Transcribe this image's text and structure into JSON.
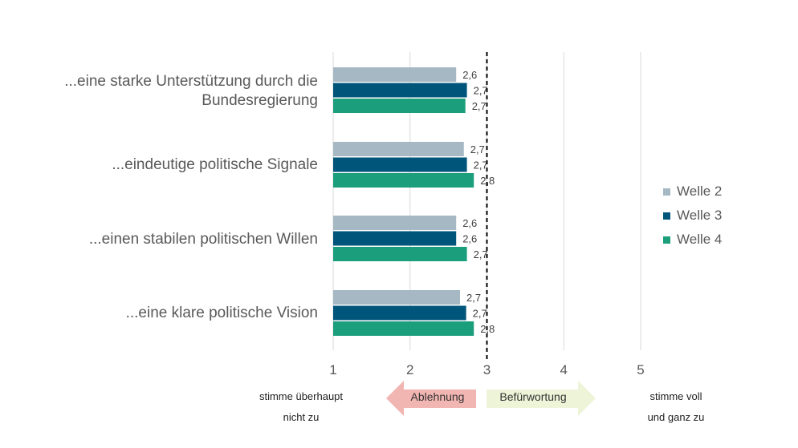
{
  "chart_data": {
    "type": "bar",
    "orientation": "horizontal",
    "categories": [
      "...eine starke Unterstützung durch die Bundesregierung",
      "...eindeutige politische Signale",
      "...einen stabilen politischen Willen",
      "...eine klare politische Vision"
    ],
    "series": [
      {
        "name": "Welle 2",
        "color": "#a5b8c3",
        "values": [
          2.6,
          2.7,
          2.6,
          2.65
        ],
        "labels": [
          "2,6",
          "2,7",
          "2,6",
          "2,7"
        ]
      },
      {
        "name": "Welle 3",
        "color": "#00567a",
        "values": [
          2.74,
          2.74,
          2.6,
          2.73
        ],
        "labels": [
          "2,7",
          "2,7",
          "2,6",
          "2,7"
        ]
      },
      {
        "name": "Welle 4",
        "color": "#1a9e7c",
        "values": [
          2.72,
          2.83,
          2.74,
          2.83
        ],
        "labels": [
          "2,7",
          "2,8",
          "2,7",
          "2,8"
        ]
      }
    ],
    "xlim": [
      1,
      5
    ],
    "xticks": [
      "1",
      "2",
      "3",
      "4",
      "5"
    ],
    "reference_line": 3,
    "grid": true,
    "legend_position": "right"
  },
  "scale_labels": {
    "left": [
      "stimme überhaupt",
      "nicht zu"
    ],
    "right": [
      "stimme voll",
      "und ganz zu"
    ],
    "negative": "Ablehnung",
    "positive": "Befürwortung"
  },
  "colors": {
    "negative_arrow": "#f2b6b2",
    "positive_arrow": "#eef4d8",
    "grid": "#d9d9d9"
  }
}
